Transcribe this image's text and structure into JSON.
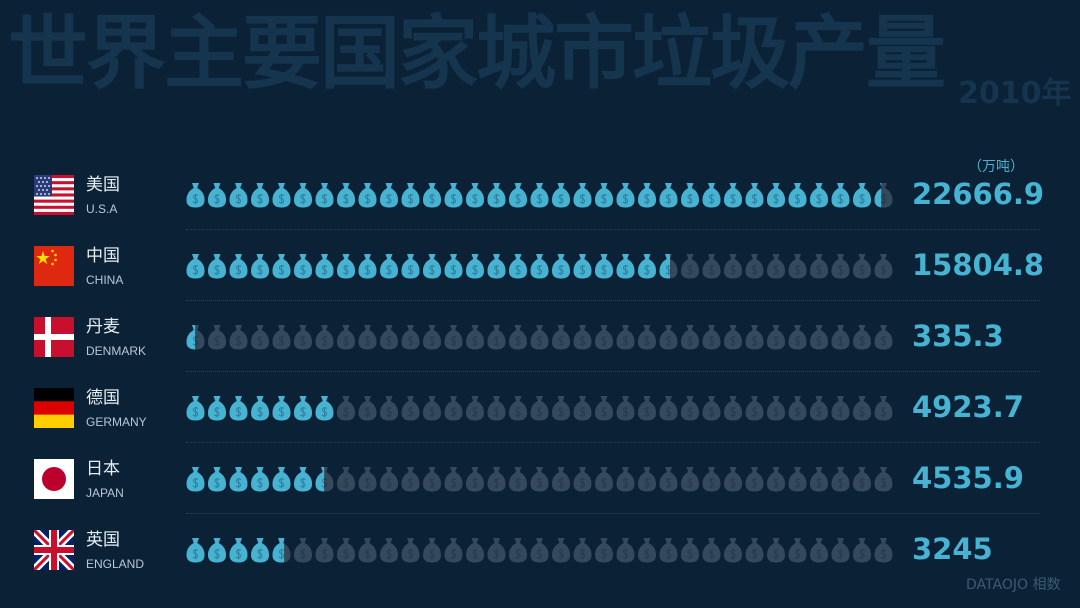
{
  "title": "世界主要国家城市垃圾产量",
  "subtitle": "2010年",
  "unit_label": "（万吨）",
  "brand": "DATAOJO 相数",
  "colors": {
    "background": "#0b2136",
    "filled": "#46b3d3",
    "empty": "#34495c",
    "title": "#15344d"
  },
  "chart_data": {
    "type": "bar",
    "categories": [
      "美国",
      "中国",
      "丹麦",
      "德国",
      "日本",
      "英国"
    ],
    "category_labels_en": [
      "U.S.A",
      "CHINA",
      "DENMARK",
      "GERMANY",
      "JAPAN",
      "ENGLAND"
    ],
    "values": [
      22666.9,
      15804.8,
      335.3,
      4923.7,
      4535.9,
      3245
    ],
    "value_labels": [
      "22666.9",
      "15804.8",
      "335.3",
      "4923.7",
      "4535.9",
      "3245"
    ],
    "unit": "万吨",
    "icons_per_row": 33,
    "value_per_icon": 700,
    "icon": "money-bag-icon"
  },
  "rows": [
    {
      "name": "美国",
      "en": "U.S.A",
      "value_label": "22666.9",
      "flag": "usa-flag"
    },
    {
      "name": "中国",
      "en": "CHINA",
      "value_label": "15804.8",
      "flag": "china-flag"
    },
    {
      "name": "丹麦",
      "en": "DENMARK",
      "value_label": "335.3",
      "flag": "denmark-flag"
    },
    {
      "name": "德国",
      "en": "GERMANY",
      "value_label": "4923.7",
      "flag": "germany-flag"
    },
    {
      "name": "日本",
      "en": "JAPAN",
      "value_label": "4535.9",
      "flag": "japan-flag"
    },
    {
      "name": "英国",
      "en": "ENGLAND",
      "value_label": "3245",
      "flag": "uk-flag"
    }
  ]
}
